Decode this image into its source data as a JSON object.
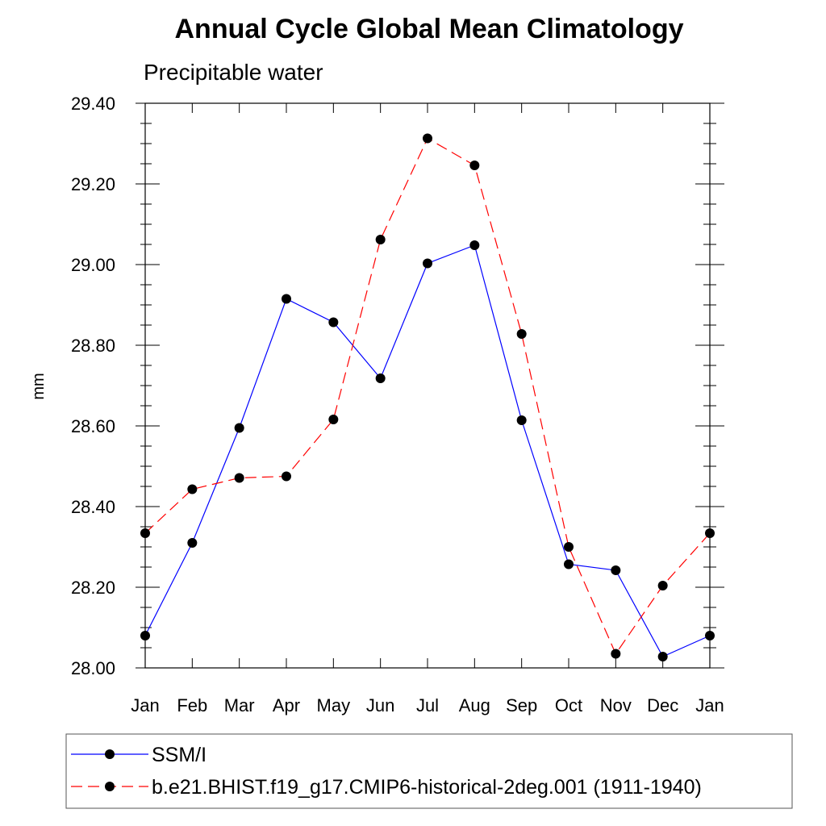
{
  "chart_data": {
    "type": "line",
    "title": "Annual Cycle Global Mean Climatology",
    "subtitle": "Precipitable water",
    "xlabel": "",
    "ylabel": "mm",
    "categories": [
      "Jan",
      "Feb",
      "Mar",
      "Apr",
      "May",
      "Jun",
      "Jul",
      "Aug",
      "Sep",
      "Oct",
      "Nov",
      "Dec",
      "Jan"
    ],
    "ylim": [
      28.0,
      29.4
    ],
    "yticks": [
      "28.00",
      "28.20",
      "28.40",
      "28.60",
      "28.80",
      "29.00",
      "29.20",
      "29.40"
    ],
    "ytick_values": [
      28.0,
      28.2,
      28.4,
      28.6,
      28.8,
      29.0,
      29.2,
      29.4
    ],
    "grid": false,
    "legend_position": "bottom",
    "series": [
      {
        "name": "SSM/I",
        "color": "#0000ff",
        "dash": "solid",
        "values": [
          28.08,
          28.31,
          28.595,
          28.915,
          28.857,
          28.718,
          29.003,
          29.048,
          28.614,
          28.257,
          28.242,
          28.028,
          28.08
        ]
      },
      {
        "name": "b.e21.BHIST.f19_g17.CMIP6-historical-2deg.001 (1911-1940)",
        "color": "#ff0000",
        "dash": "dashed",
        "values": [
          28.334,
          28.443,
          28.471,
          28.475,
          28.616,
          29.062,
          29.313,
          29.246,
          28.828,
          28.3,
          28.035,
          28.204,
          28.334
        ]
      }
    ]
  }
}
